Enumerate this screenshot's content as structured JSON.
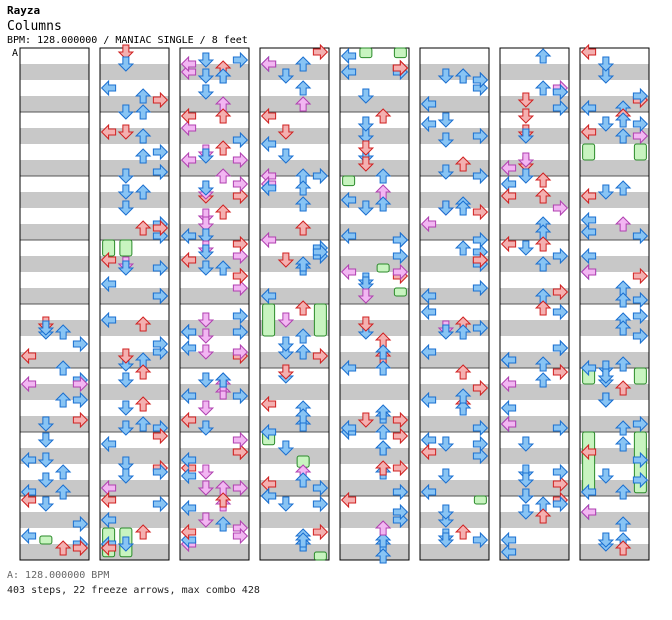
{
  "song": {
    "title": "Rayza",
    "view_mode": "Columns",
    "info_line": "BPM: 128.000000 / MANIAC SINGLE / 8 feet",
    "section_label": "A"
  },
  "footer": {
    "bpm_line": "A: 128.000000 BPM",
    "stats_line": "403 steps, 22 freeze arrows, max combo 428"
  },
  "colors": {
    "stripe": "#c8c8c8",
    "quarter_fill": "#f4b0b0",
    "quarter_stroke": "#d02020",
    "eighth_fill": "#88c4f4",
    "eighth_stroke": "#1a6fd0",
    "sixteenth_fill": "#f2b6f2",
    "sixteenth_stroke": "#b040b0",
    "freeze_fill": "#c8f4c0",
    "freeze_stroke": "#2a8a2a"
  },
  "arrow_icons": [
    "left-arrow-icon",
    "down-arrow-icon",
    "up-arrow-icon",
    "right-arrow-icon"
  ],
  "chart_data": {
    "type": "step-chart",
    "panels": 4,
    "panel_order": [
      "left",
      "down",
      "up",
      "right"
    ],
    "measures_per_column": 8,
    "columns": 8,
    "total_measures": 64,
    "bpm": 128,
    "difficulty": "MANIAC",
    "play_style": "SINGLE",
    "foot_rating": 8,
    "steps": 403,
    "freeze_arrows": 22,
    "max_combo": 428,
    "freezes": [
      {
        "measure": 11,
        "start_beat": 0.0,
        "end_beat": 1.0,
        "panel": 0
      },
      {
        "measure": 11,
        "start_beat": 0.0,
        "end_beat": 1.0,
        "panel": 1
      },
      {
        "measure": 15,
        "start_beat": 2.0,
        "end_beat": 3.8,
        "panel": 0
      },
      {
        "measure": 15,
        "start_beat": 2.0,
        "end_beat": 3.8,
        "panel": 1
      },
      {
        "measure": 28,
        "start_beat": 0.0,
        "end_beat": 2.0,
        "panel": 0
      },
      {
        "measure": 28,
        "start_beat": 0.0,
        "end_beat": 2.0,
        "panel": 3
      },
      {
        "measure": 30,
        "start_beat": 0.0,
        "end_beat": 0.8,
        "panel": 0
      },
      {
        "measure": 30,
        "start_beat": 1.5,
        "end_beat": 2.2,
        "panel": 2
      },
      {
        "measure": 31,
        "start_beat": 3.5,
        "end_beat": 4.0,
        "panel": 3
      },
      {
        "measure": 32,
        "start_beat": 0.0,
        "end_beat": 0.6,
        "panel": 1
      },
      {
        "measure": 32,
        "start_beat": 0.0,
        "end_beat": 0.6,
        "panel": 3
      },
      {
        "measure": 34,
        "start_beat": 0.0,
        "end_beat": 0.6,
        "panel": 0
      },
      {
        "measure": 35,
        "start_beat": 1.5,
        "end_beat": 2.0,
        "panel": 2
      },
      {
        "measure": 35,
        "start_beat": 3.0,
        "end_beat": 3.5,
        "panel": 3
      },
      {
        "measure": 57,
        "start_beat": 2.0,
        "end_beat": 3.0,
        "panel": 0
      },
      {
        "measure": 57,
        "start_beat": 2.0,
        "end_beat": 3.0,
        "panel": 3
      },
      {
        "measure": 61,
        "start_beat": 0.0,
        "end_beat": 1.0,
        "panel": 0
      },
      {
        "measure": 61,
        "start_beat": 0.0,
        "end_beat": 1.0,
        "panel": 3
      },
      {
        "measure": 62,
        "start_beat": 0.0,
        "end_beat": 3.8,
        "panel": 0
      },
      {
        "measure": 62,
        "start_beat": 0.0,
        "end_beat": 3.8,
        "panel": 3
      },
      {
        "measure": 7,
        "start_beat": 2.5,
        "end_beat": 2.9,
        "panel": 1
      },
      {
        "measure": 47,
        "start_beat": 0.0,
        "end_beat": 0.5,
        "panel": 3
      }
    ]
  }
}
